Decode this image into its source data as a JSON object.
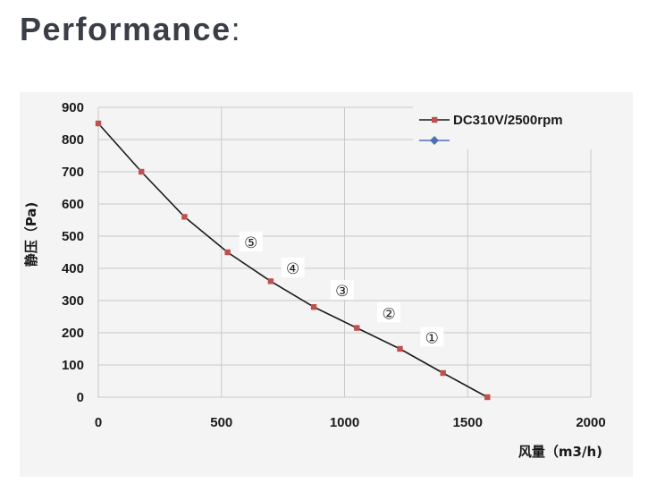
{
  "header": {
    "title": "Performance",
    "colon": ":"
  },
  "chart_data": {
    "type": "line",
    "title": "",
    "xlabel": "风量（m3/h)",
    "ylabel": "静压（Pa)",
    "xlim": [
      0,
      2000
    ],
    "ylim": [
      0,
      900
    ],
    "xticks": [
      "0",
      "500",
      "1000",
      "1500",
      "2000"
    ],
    "yticks": [
      "0",
      "100",
      "200",
      "300",
      "400",
      "500",
      "600",
      "700",
      "800",
      "900"
    ],
    "grid": true,
    "legend_position": "top-right",
    "series": [
      {
        "name": "DC310V/2500rpm",
        "color": "#c0504d",
        "line_color": "#1a1a1a",
        "marker": "square",
        "x": [
          0,
          175,
          350,
          525,
          700,
          875,
          1050,
          1225,
          1400,
          1580
        ],
        "y": [
          850,
          700,
          560,
          450,
          360,
          280,
          215,
          150,
          75,
          0
        ]
      },
      {
        "name": "",
        "color": "#4f6fb5",
        "marker": "diamond",
        "x": [],
        "y": []
      }
    ],
    "annotations": [
      {
        "text": "⑤",
        "x": 620,
        "y": 480
      },
      {
        "text": "④",
        "x": 790,
        "y": 400
      },
      {
        "text": "③",
        "x": 990,
        "y": 330
      },
      {
        "text": "②",
        "x": 1180,
        "y": 260
      },
      {
        "text": "①",
        "x": 1355,
        "y": 185
      }
    ]
  }
}
